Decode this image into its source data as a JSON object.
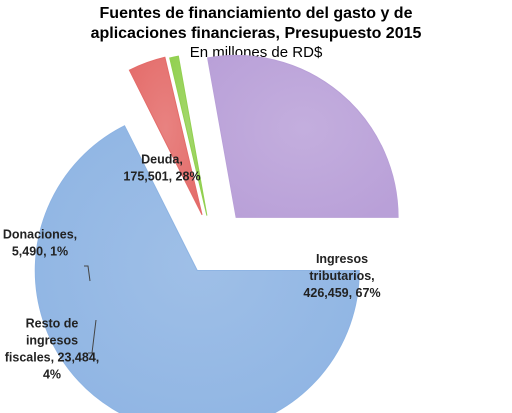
{
  "chart_data": {
    "type": "pie",
    "title_line1": "Fuentes de financiamiento del gasto y de",
    "title_line2": "aplicaciones financieras, Presupuesto 2015",
    "subtitle": "En millones de RD$",
    "slices": [
      {
        "name": "Ingresos tributarios",
        "value": 426459,
        "percent": 67,
        "color": "#8EB4E3",
        "label_lines": [
          "Ingresos",
          "tributarios,",
          "426,459, 67%"
        ]
      },
      {
        "name": "Resto de ingresos fiscales",
        "value": 23484,
        "percent": 4,
        "color": "#E46C6A",
        "label_lines": [
          "Resto de",
          "ingresos",
          "fiscales, 23,484,",
          "4%"
        ]
      },
      {
        "name": "Donaciones",
        "value": 5490,
        "percent": 1,
        "color": "#92D050",
        "label_lines": [
          "Donaciones,",
          "5,490, 1%"
        ]
      },
      {
        "name": "Deuda",
        "value": 175501,
        "percent": 28,
        "color": "#B9A0D8",
        "label_lines": [
          "Deuda,",
          "175,501, 28%"
        ]
      }
    ]
  }
}
